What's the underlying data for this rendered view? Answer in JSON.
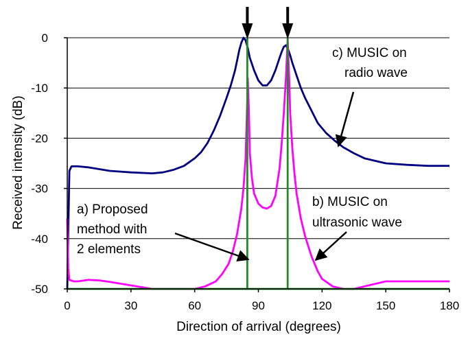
{
  "chart_data": {
    "type": "line",
    "title": "",
    "xlabel": "Direction of arrival (degrees)",
    "ylabel": "Received intensity (dB)",
    "xlim": [
      0,
      180
    ],
    "ylim": [
      -50,
      0
    ],
    "xticks": [
      0,
      30,
      60,
      90,
      120,
      150,
      180
    ],
    "yticks": [
      0,
      -10,
      -20,
      -30,
      -40,
      -50
    ],
    "grid": "horizontal",
    "series": [
      {
        "key": "c",
        "color": "#000080",
        "x": [
          0,
          1,
          2,
          5,
          10,
          20,
          30,
          40,
          45,
          50,
          55,
          60,
          63,
          66,
          69,
          72,
          75,
          77,
          79,
          80,
          81,
          82,
          83,
          84,
          85,
          86,
          88,
          90,
          92,
          94,
          96,
          98,
          100,
          101,
          102,
          103,
          104,
          105,
          106,
          108,
          110,
          112,
          115,
          118,
          122,
          126,
          130,
          135,
          140,
          150,
          160,
          170,
          180
        ],
        "values": [
          -50,
          -26.5,
          -25.6,
          -25.6,
          -25.8,
          -26.5,
          -26.8,
          -27,
          -26.8,
          -26.3,
          -25.5,
          -24,
          -22.8,
          -21,
          -18.5,
          -15.5,
          -12,
          -9.5,
          -6.5,
          -4.5,
          -2.5,
          -1,
          0,
          -0.5,
          -2,
          -4,
          -6.5,
          -8.5,
          -9.5,
          -9.5,
          -8.5,
          -6.5,
          -4,
          -2.8,
          -1.8,
          -1.5,
          -2.3,
          -3.5,
          -5,
          -7.5,
          -10,
          -12,
          -14.5,
          -17,
          -19,
          -20.5,
          -21.8,
          -23,
          -24,
          -25,
          -25.3,
          -25.5,
          -25.5
        ]
      },
      {
        "key": "b",
        "color": "#ff00ff",
        "x": [
          0,
          0.5,
          1,
          3,
          5,
          10,
          15,
          20,
          30,
          40,
          50,
          60,
          65,
          70,
          73,
          76,
          78,
          80,
          82,
          83,
          84,
          84.8,
          85,
          85.5,
          86,
          87,
          88,
          90,
          92,
          94,
          96,
          98,
          100,
          101,
          102,
          103,
          103.8,
          104.5,
          105,
          106,
          107,
          108,
          110,
          112,
          115,
          118,
          120,
          125,
          130,
          135,
          140,
          150,
          160,
          170,
          180
        ],
        "values": [
          -36,
          -46,
          -48.2,
          -48.5,
          -48.5,
          -48.2,
          -48.3,
          -48.6,
          -49.3,
          -50,
          -50,
          -50,
          -49.5,
          -48.5,
          -47,
          -45,
          -42.5,
          -39,
          -34,
          -30,
          -24,
          -12,
          -8,
          -14,
          -23,
          -28,
          -31,
          -33,
          -33.8,
          -34,
          -33.5,
          -31.5,
          -26,
          -21,
          -15,
          -8,
          -0.3,
          -8,
          -15,
          -22,
          -27,
          -31,
          -36,
          -39.5,
          -43.5,
          -46.5,
          -48,
          -49.5,
          -50,
          -50,
          -49.5,
          -48.5,
          -48.5,
          -48.5,
          -48.5
        ]
      },
      {
        "key": "a",
        "color": "#228b22",
        "x": [
          0,
          84.8,
          84.8,
          84.8,
          103.8,
          103.8,
          103.8,
          180
        ],
        "values": [
          -50,
          -50,
          0,
          -50,
          -50,
          0,
          -50,
          -50
        ]
      }
    ],
    "markers": {
      "x": [
        84.8,
        103.8
      ],
      "symbol": "down-arrow",
      "color": "#000000"
    },
    "annotations": [
      {
        "id": "a",
        "lines": [
          "a) Proposed",
          "method with",
          "2 elements"
        ],
        "points_to": "a"
      },
      {
        "id": "b",
        "lines": [
          "b) MUSIC on",
          "ultrasonic wave"
        ],
        "points_to": "b"
      },
      {
        "id": "c",
        "lines": [
          "c) MUSIC on",
          "radio wave"
        ],
        "points_to": "c"
      }
    ]
  }
}
